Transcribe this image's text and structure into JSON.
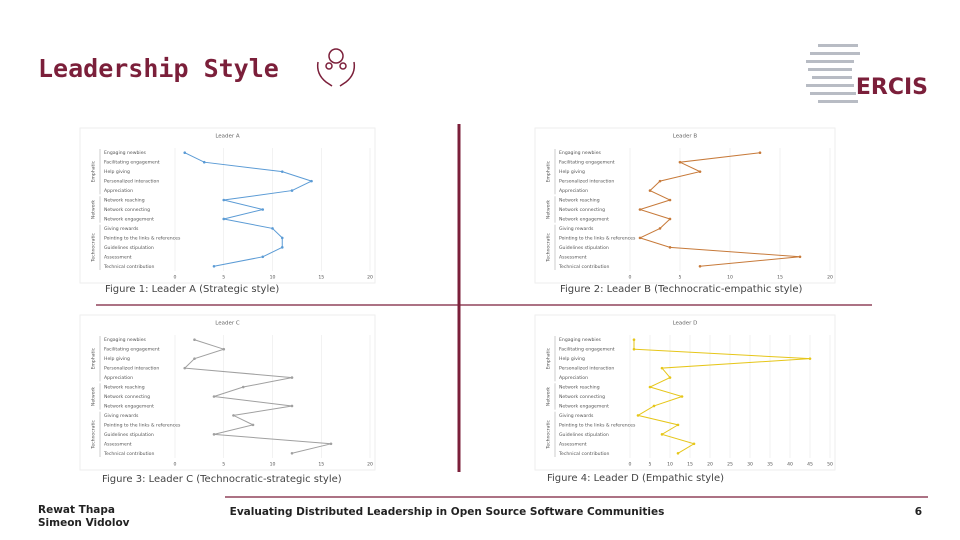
{
  "header": {
    "title": "Leadership Style",
    "logo": "ERCIS"
  },
  "chart_data": [
    {
      "type": "line",
      "title": "Leader A",
      "caption": "Figure 1: Leader A (Strategic style)",
      "color": "#5b9bd5",
      "groups": [
        {
          "name": "Emphatic",
          "categories": [
            "Engaging newbies",
            "Facilitating engagement",
            "Help giving",
            "Personalized interaction",
            "Appreciation"
          ]
        },
        {
          "name": "Network",
          "categories": [
            "Network reaching",
            "Network connecting",
            "Network engagement"
          ]
        },
        {
          "name": "Technocratic",
          "categories": [
            "Giving rewards",
            "Pointing to the links & references",
            "Guidelines stipulation",
            "Assessment",
            "Technical contribution"
          ]
        }
      ],
      "values": [
        1,
        3,
        11,
        14,
        12,
        5,
        9,
        5,
        10,
        11,
        11,
        9,
        4
      ],
      "xlim": [
        0,
        20
      ],
      "xticks": [
        0,
        5,
        10,
        15,
        20
      ]
    },
    {
      "type": "line",
      "title": "Leader B",
      "caption": "Figure 2: Leader B (Technocratic-empathic style)",
      "color": "#c77a3a",
      "groups": [
        {
          "name": "Emphatic",
          "categories": [
            "Engaging newbies",
            "Facilitating engagement",
            "Help giving",
            "Personalized interaction",
            "Appreciation"
          ]
        },
        {
          "name": "Network",
          "categories": [
            "Network reaching",
            "Network connecting",
            "Network engagement"
          ]
        },
        {
          "name": "Technocratic",
          "categories": [
            "Giving rewards",
            "Pointing to the links & references",
            "Guidelines stipulation",
            "Assessment",
            "Technical contribution"
          ]
        }
      ],
      "values": [
        13,
        5,
        7,
        3,
        2,
        4,
        1,
        4,
        3,
        1,
        4,
        17,
        7
      ],
      "xlim": [
        0,
        20
      ],
      "xticks": [
        0,
        5,
        10,
        15,
        20
      ]
    },
    {
      "type": "line",
      "title": "Leader C",
      "caption": "Figure 3: Leader C (Technocratic-strategic style)",
      "color": "#a0a0a0",
      "groups": [
        {
          "name": "Emphatic",
          "categories": [
            "Engaging newbies",
            "Facilitating engagement",
            "Help giving",
            "Personalized interaction",
            "Appreciation"
          ]
        },
        {
          "name": "Network",
          "categories": [
            "Network reaching",
            "Network connecting",
            "Network engagement"
          ]
        },
        {
          "name": "Technocratic",
          "categories": [
            "Giving rewards",
            "Pointing to the links & references",
            "Guidelines stipulation",
            "Assessment",
            "Technical contribution"
          ]
        }
      ],
      "values": [
        2,
        5,
        2,
        1,
        12,
        7,
        4,
        12,
        6,
        8,
        4,
        16,
        12
      ],
      "xlim": [
        0,
        20
      ],
      "xticks": [
        0,
        5,
        10,
        15,
        20
      ]
    },
    {
      "type": "line",
      "title": "Leader D",
      "caption": "Figure 4: Leader D (Empathic style)",
      "color": "#e6c619",
      "groups": [
        {
          "name": "Emphatic",
          "categories": [
            "Engaging newbies",
            "Facilitating engagement",
            "Help giving",
            "Personalized interaction",
            "Appreciation"
          ]
        },
        {
          "name": "Network",
          "categories": [
            "Network reaching",
            "Network connecting",
            "Network engagement"
          ]
        },
        {
          "name": "Technocratic",
          "categories": [
            "Giving rewards",
            "Pointing to the links & references",
            "Guidelines stipulation",
            "Assessment",
            "Technical contribution"
          ]
        }
      ],
      "values": [
        1,
        1,
        45,
        8,
        10,
        5,
        13,
        6,
        2,
        12,
        8,
        16,
        12
      ],
      "xlim": [
        0,
        50
      ],
      "xticks": [
        0,
        5,
        10,
        15,
        20,
        25,
        30,
        35,
        40,
        45,
        50
      ]
    }
  ],
  "footer": {
    "authors": [
      "Rewat Thapa",
      "Simeon Vidolov"
    ],
    "title": "Evaluating Distributed Leadership in Open Source Software Communities",
    "page": "6"
  }
}
